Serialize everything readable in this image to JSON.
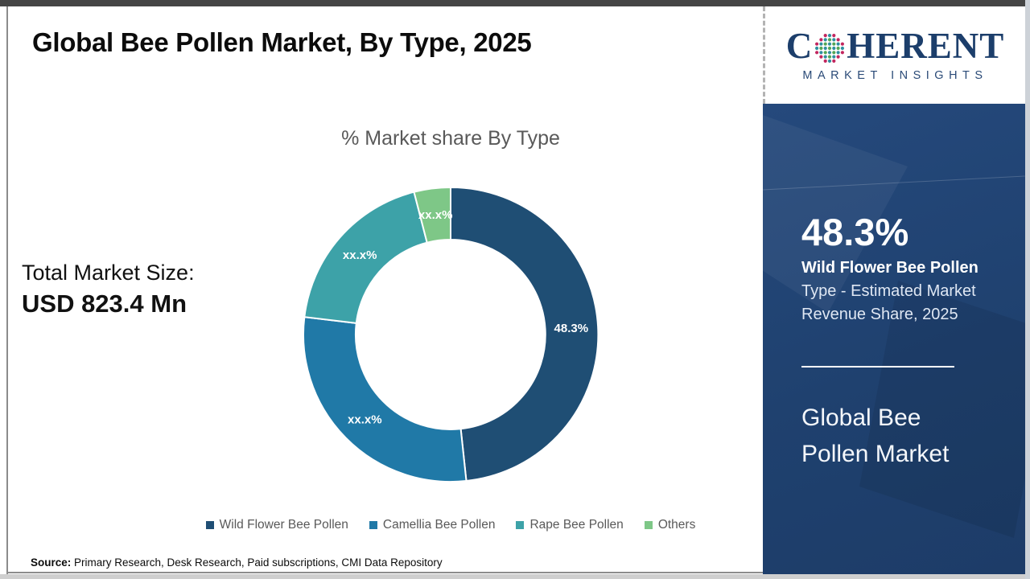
{
  "page": {
    "title": "Global Bee Pollen Market, By Type, 2025",
    "source_label": "Source:",
    "source_text": " Primary Research, Desk Research, Paid subscriptions, CMI Data Repository"
  },
  "stats": {
    "total_label": "Total Market Size:",
    "total_value": "USD 823.4 Mn"
  },
  "sidebar": {
    "logo": {
      "word_start": "C",
      "word_end": "HERENT",
      "subtitle": "MARKET INSIGHTS",
      "globe_icon": "dotted-globe",
      "brand_navy": "#1c3e6b",
      "dot_teal": "#2e8fa0",
      "dot_green": "#53a554",
      "dot_pink": "#c2265e"
    },
    "panel_bg": "#1f416f",
    "highlight_value": "48.3%",
    "highlight_bold": "Wild Flower Bee Pollen",
    "highlight_line2": "Type - Estimated Market",
    "highlight_line3": "Revenue Share, 2025",
    "product_line1": "Global Bee",
    "product_line2": "Pollen Market"
  },
  "chart_data": {
    "type": "pie",
    "donut": true,
    "title": "% Market share By Type",
    "categories": [
      "Wild Flower Bee Pollen",
      "Camellia Bee Pollen",
      "Rape Bee Pollen",
      "Others"
    ],
    "values": [
      48.3,
      28.6,
      19.1,
      4.0
    ],
    "value_labels": [
      "48.3%",
      "xx.x%",
      "xx.x%",
      "xx.x%"
    ],
    "colors": [
      "#1f4e74",
      "#2079a7",
      "#3da2a8",
      "#7ec787"
    ],
    "legend_position": "bottom",
    "note": "Only the 48.3% share is disclosed; remaining segment values are masked as xx.x% in the source image and are visual estimates."
  }
}
